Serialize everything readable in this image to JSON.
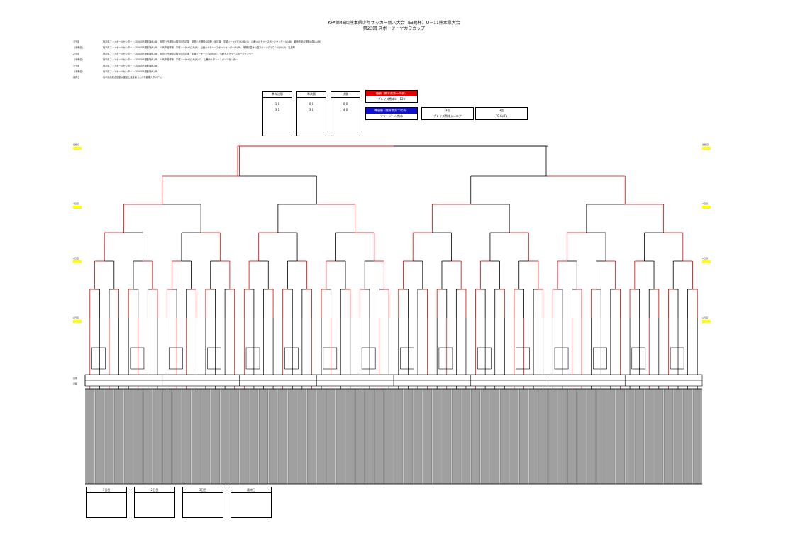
{
  "header": {
    "title_line1": "KFA第46回熊本県少年サッカー新人大会（田嶋杯）U－11熊本県大会",
    "title_line2": "第23回 スポーツ・ヤカワカップ"
  },
  "schedule": [
    {
      "day": "1日目",
      "text": "熊本県フットボールセンター・CONSOR運動場(A)(B)　県営八代運動公園多目的広場　県営八代運動公園陸上競技場　宇城ソーケイビ(A)(B)(C)　山鹿カルチャースポーツセンター(A)(B)　菊池市総合運動公園(A)(B)"
    },
    {
      "day": "（予備日）",
      "text": "熊本県フットボールセンター・CONSOR運動場(A)(B)　八代市営球場　宇城ソーケイビ(A)(B)　山鹿カルチャースポーツセンター(A)(B)　菊陽杉並木公園スポーツグラウンド(A)(B)　嘉島町"
    },
    {
      "day": "2日目",
      "text": "熊本県フットボールセンター・CONSOR運動場(A)(B)　県営八代運動公園多目的広場　宇城ソーケイビ(A)(B)(C)　山鹿カルチャースポーツセンター"
    },
    {
      "day": "（予備日）",
      "text": "熊本県フットボールセンター・CONSOR運動場(A)(B)　八代市営球場　宇城ソーケイビ(A)(B)(C)　山鹿カルチャースポーツセンター"
    },
    {
      "day": "3日目",
      "text": "熊本県フットボールセンター・CONSOR運動場(A)(B)"
    },
    {
      "day": "（予備日）",
      "text": "熊本県フットボールセンター・CONSOR運動場(A)(B)"
    },
    {
      "day": "最終日",
      "text": "熊本県民総合運動公園陸上競技場（えがお健康スタジアム）"
    }
  ],
  "summary_boxes": [
    {
      "label": "準々決勝",
      "rows": [
        "1  0",
        "3  1",
        "",
        "",
        ""
      ]
    },
    {
      "label": "準決勝",
      "rows": [
        "0  0",
        "3  0",
        "",
        "",
        ""
      ]
    },
    {
      "label": "決勝",
      "rows": [
        "0  0",
        "4  0",
        "",
        "",
        ""
      ]
    }
  ],
  "results": {
    "winner_label": "優勝（熊本県第一代表）",
    "winner_team": "ブレイズ熊本U－12V",
    "runnerup_label": "準優勝（熊本県第二代表）",
    "runnerup_team": "ソリーゾール熊本",
    "third_label_a": "3位",
    "third_team_a": "ブレイズ熊本ジュニア",
    "third_label_b": "3位",
    "third_team_b": "FC Ks'Fa"
  },
  "colors": {
    "winner_line": "#e00000",
    "line": "#000000",
    "highlight": "#ffff00",
    "team_cell": "#a0a0a0"
  },
  "venue_tables": [
    {
      "title": "1日目"
    },
    {
      "title": "2日目"
    },
    {
      "title": "3日目"
    },
    {
      "title": "最終日"
    }
  ],
  "side_labels_left": [
    "最終日",
    "3日目",
    "2日目",
    "1日目"
  ],
  "side_labels_right": [
    "最終日",
    "3日目",
    "2日目",
    "1日目"
  ],
  "table_row_labels": [
    "会場",
    "日時"
  ]
}
